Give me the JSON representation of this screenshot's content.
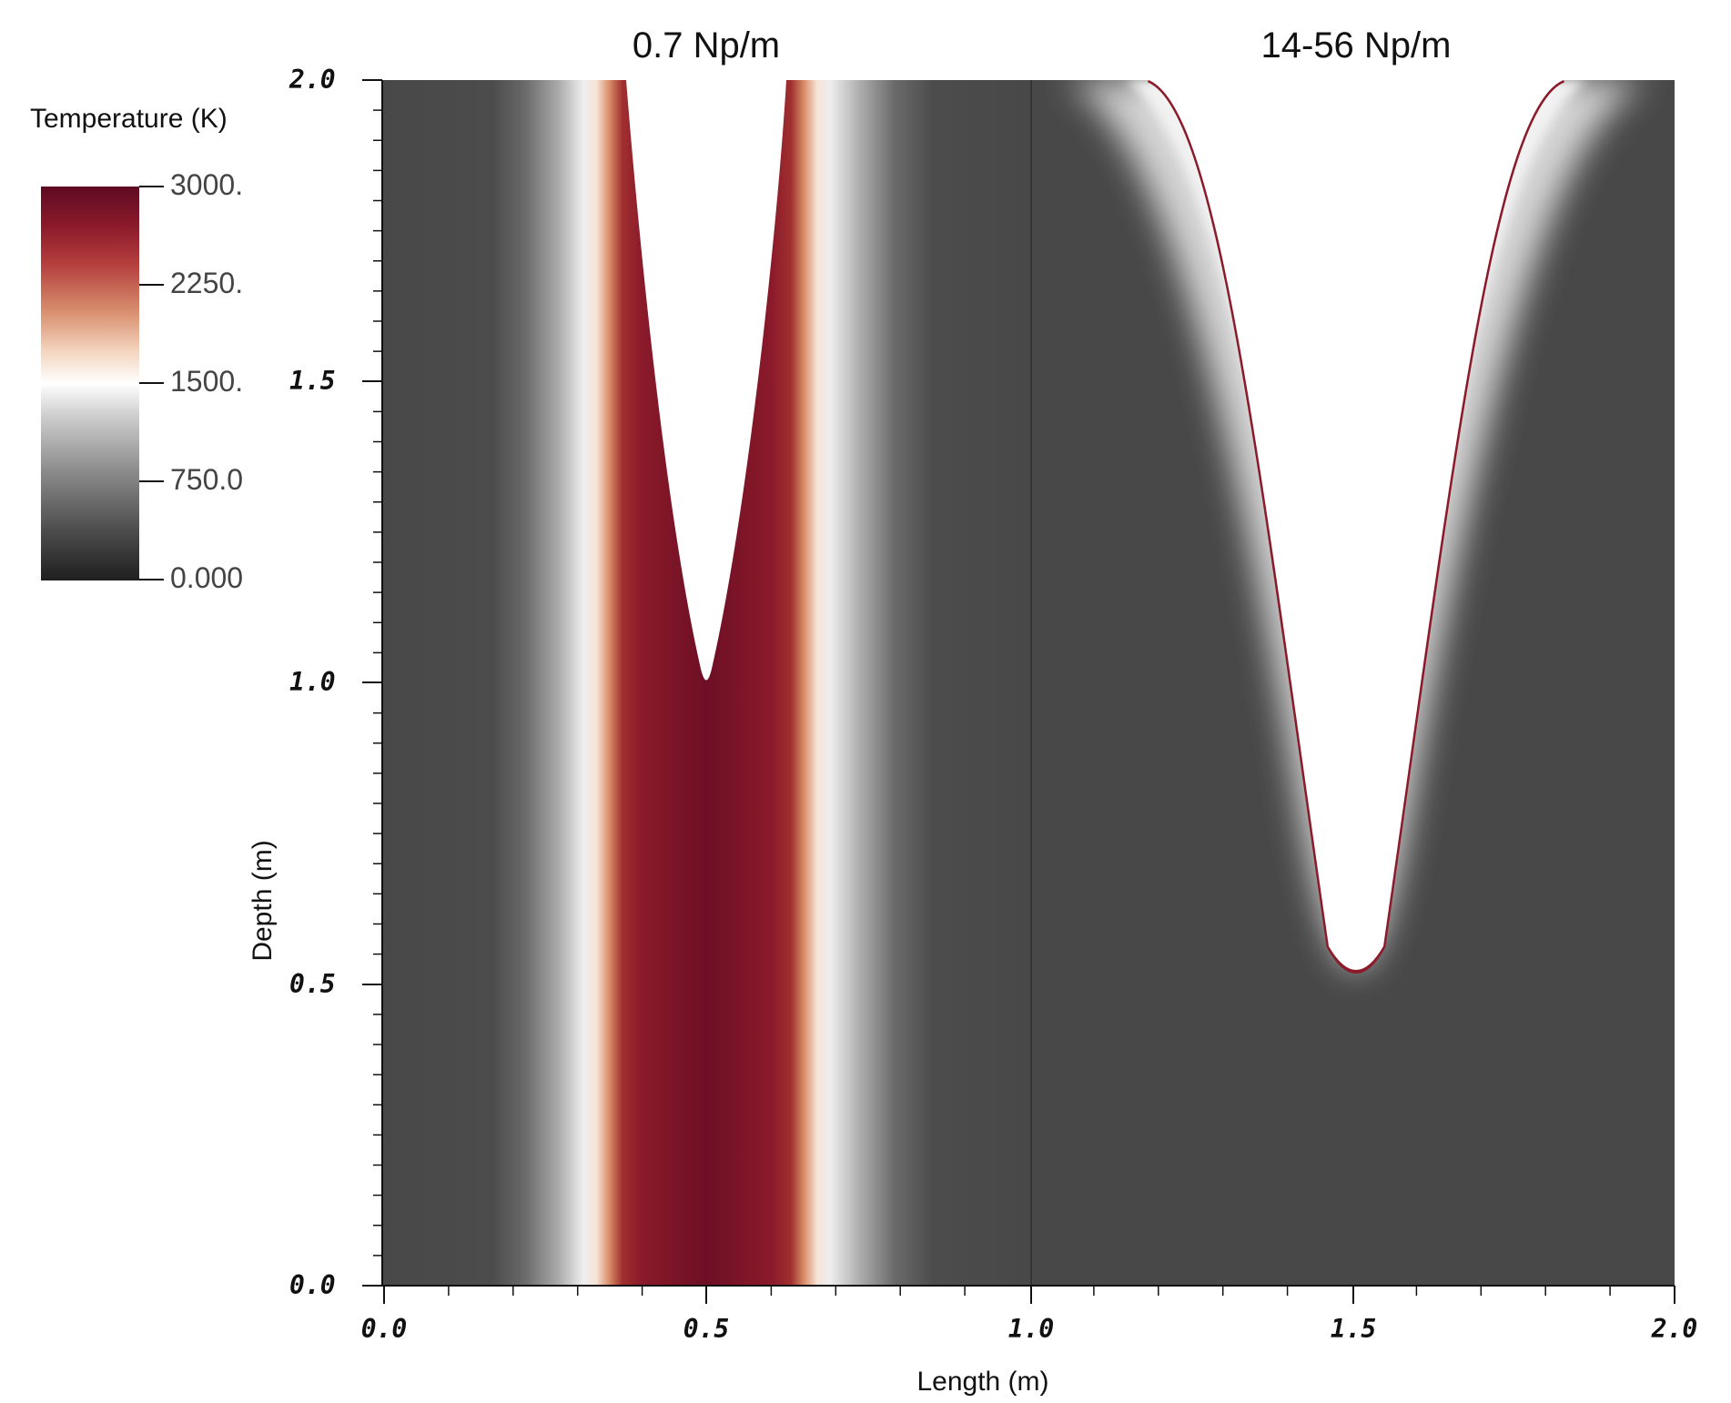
{
  "chart_data": {
    "type": "heatmap",
    "panels": [
      {
        "title": "0.7 Np/m",
        "x_range": [
          0.0,
          1.0
        ],
        "y_range": [
          0.0,
          2.0
        ],
        "cavity_apex_depth": 1.0,
        "cavity_center_x": 0.5
      },
      {
        "title": "14-56 Np/m",
        "x_range": [
          1.0,
          2.0
        ],
        "y_range": [
          0.0,
          2.0
        ],
        "cavity_apex_depth": 0.53,
        "cavity_center_x": 1.5
      }
    ],
    "xlabel": "Length (m)",
    "ylabel": "Depth (m)",
    "xlim": [
      0.0,
      2.0
    ],
    "ylim": [
      0.0,
      2.0
    ],
    "x_ticks": [
      "0.0",
      "0.5",
      "1.0",
      "1.5",
      "2.0"
    ],
    "y_ticks": [
      "0.0",
      "0.5",
      "1.0",
      "1.5",
      "2.0"
    ],
    "colorbar": {
      "title": "Temperature (K)",
      "range": [
        0,
        3000
      ],
      "ticks": [
        "3000.",
        "2250.",
        "1500.",
        "750.0",
        "0.000"
      ],
      "colors": [
        "#1f1f1f",
        "#4a4a4a",
        "#8c8c8c",
        "#cfcfcf",
        "#ffffff",
        "#f4d6c0",
        "#d99070",
        "#b5403e",
        "#8b1a2a",
        "#5e0a22"
      ]
    },
    "grid": false,
    "legend": "left"
  }
}
